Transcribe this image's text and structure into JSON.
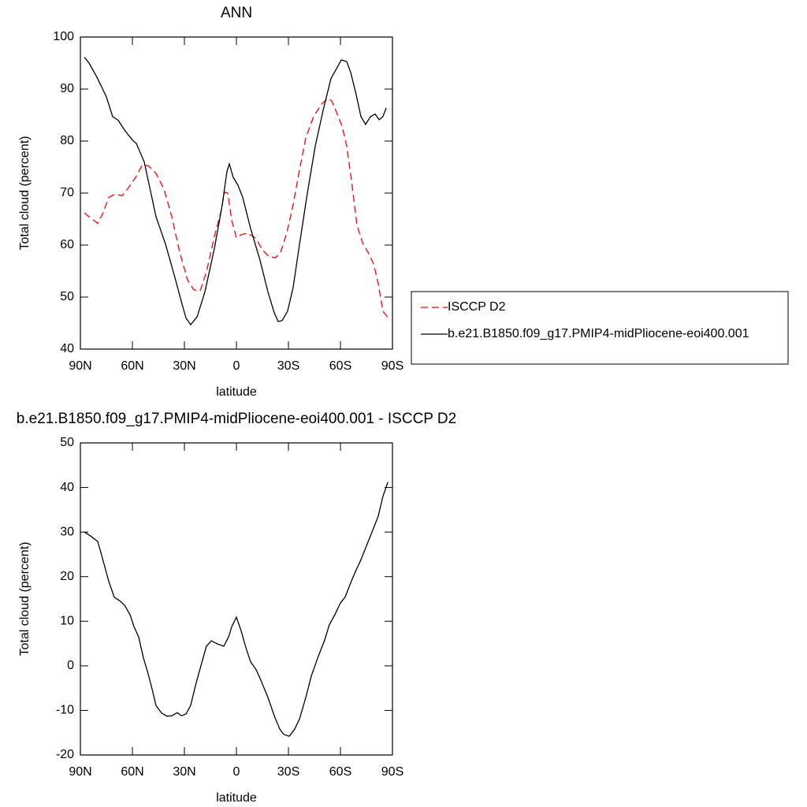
{
  "chart_data": [
    {
      "type": "line",
      "title": "ANN",
      "xlabel": "latitude",
      "ylabel": "Total cloud (percent)",
      "xlim": [
        90,
        -90
      ],
      "xticks": [
        {
          "value": 90,
          "label": "90N"
        },
        {
          "value": 60,
          "label": "60N"
        },
        {
          "value": 30,
          "label": "30N"
        },
        0,
        {
          "value": -30,
          "label": "30S"
        },
        {
          "value": -60,
          "label": "60S"
        },
        {
          "value": -90,
          "label": "90S"
        }
      ],
      "ylim": [
        40,
        100
      ],
      "yticks": [
        40,
        50,
        60,
        70,
        80,
        90,
        100
      ],
      "legend": "right",
      "series": [
        {
          "name": "ISCCP D2",
          "color": "#ff0000",
          "linestyle": "dashed",
          "x": [
            87.7,
            84.1,
            80,
            77.3,
            73.6,
            70,
            65.9,
            62.3,
            58.2,
            54.5,
            50.9,
            46.4,
            41.8,
            37.3,
            32.7,
            28.2,
            24.5,
            20.9,
            17.3,
            12.7,
            9.1,
            6.8,
            5,
            2.7,
            0,
            -2.7,
            -6.4,
            -10.9,
            -15.5,
            -19.1,
            -22.7,
            -25.5,
            -29.1,
            -32.7,
            -36.4,
            -40,
            -44.5,
            -49.1,
            -52.7,
            -55,
            -58.2,
            -60.9,
            -63.6,
            -66.4,
            -69.5,
            -72.7,
            -75.9,
            -79.1,
            -81.8,
            -84.5,
            -87.3
          ],
          "values": [
            66.2,
            65.2,
            64.2,
            65.9,
            69.2,
            69.8,
            69.5,
            71,
            73,
            75.3,
            75.3,
            73.8,
            70.8,
            65.5,
            58.6,
            53.3,
            51.4,
            51.2,
            54.8,
            61.7,
            66.2,
            70.2,
            70,
            64.7,
            61.4,
            62,
            62.3,
            61.4,
            58.9,
            57.7,
            57.6,
            58.6,
            62.4,
            67.7,
            74.5,
            80.6,
            84.7,
            87.1,
            88.2,
            87.7,
            85.2,
            82.9,
            79.1,
            72.3,
            63.9,
            60.5,
            58.6,
            56.4,
            52.6,
            47.3,
            46.1
          ]
        },
        {
          "name": "b.e21.B1850.f09_g17.PMIP4-midPliocene-eoi400.001",
          "color": "#000000",
          "linestyle": "solid",
          "x": [
            87.7,
            85,
            80.5,
            75,
            71.4,
            68.2,
            64.5,
            60,
            57.7,
            53.2,
            46.4,
            40.9,
            35.5,
            31.8,
            29.1,
            26.4,
            22.7,
            18.2,
            12.7,
            8.2,
            5.5,
            4.1,
            1.8,
            -0.9,
            -3.6,
            -8.2,
            -13.6,
            -18.2,
            -21.8,
            -24.1,
            -26.4,
            -29.5,
            -32.7,
            -36.4,
            -40.9,
            -45.5,
            -50,
            -54.5,
            -58.2,
            -60.5,
            -63.6,
            -65.9,
            -69.1,
            -71.8,
            -74.5,
            -77.3,
            -80,
            -82.3,
            -84.5,
            -86.4
          ],
          "values": [
            96.1,
            95,
            92.3,
            88.5,
            84.7,
            84,
            82.1,
            80.2,
            79.5,
            76,
            65.5,
            60.2,
            53.8,
            49.2,
            46,
            44.7,
            46.2,
            51,
            59.4,
            67.7,
            74.1,
            75.6,
            73,
            71.5,
            69.2,
            63.2,
            57.1,
            51,
            47,
            45.3,
            45.5,
            47.3,
            51.8,
            60.2,
            70,
            79.1,
            85.9,
            92,
            94.2,
            95.6,
            95.3,
            93.2,
            88.9,
            84.7,
            83.2,
            84.7,
            85.2,
            84.1,
            84.7,
            86.4
          ]
        }
      ]
    },
    {
      "type": "line",
      "title": "b.e21.B1850.f09_g17.PMIP4-midPliocene-eoi400.001 - ISCCP D2",
      "xlabel": "latitude",
      "ylabel": "Total cloud (percent)",
      "xlim": [
        90,
        -90
      ],
      "xticks": [
        {
          "value": 90,
          "label": "90N"
        },
        {
          "value": 60,
          "label": "60N"
        },
        {
          "value": 30,
          "label": "30N"
        },
        0,
        {
          "value": -30,
          "label": "30S"
        },
        {
          "value": -60,
          "label": "60S"
        },
        {
          "value": -90,
          "label": "90S"
        }
      ],
      "ylim": [
        -20,
        50
      ],
      "yticks": [
        -20,
        -10,
        0,
        10,
        20,
        30,
        40,
        50
      ],
      "series": [
        {
          "color": "#000000",
          "linestyle": "solid",
          "x": [
            87.7,
            84.1,
            80,
            77.3,
            73.6,
            70.5,
            67.3,
            64.5,
            61.4,
            59.1,
            56.4,
            53.6,
            50.9,
            48.6,
            46.4,
            43.2,
            40,
            37.3,
            34.1,
            31.8,
            29.1,
            26.4,
            23.6,
            20.5,
            17.3,
            14.5,
            10.9,
            7.3,
            4.5,
            2.7,
            0,
            -2.7,
            -5.5,
            -8.2,
            -11.4,
            -14.5,
            -18.2,
            -21.8,
            -25,
            -27.3,
            -30.5,
            -33.6,
            -36.4,
            -40,
            -43.2,
            -46.8,
            -50.9,
            -53.6,
            -56.8,
            -60,
            -62.7,
            -66.4,
            -69.1,
            -71.8,
            -75.5,
            -79.1,
            -81.8,
            -84.5,
            -87.3
          ],
          "values": [
            30,
            29.1,
            27.9,
            24.2,
            18.9,
            15.4,
            14.6,
            13.6,
            11.5,
            8.8,
            6.5,
            1.7,
            -1.8,
            -5.3,
            -8.9,
            -10.6,
            -11.3,
            -11.2,
            -10.5,
            -11.2,
            -10.8,
            -8.9,
            -4.4,
            0,
            4.4,
            5.6,
            4.9,
            4.4,
            6.5,
            8.8,
            10.9,
            7.9,
            4,
            0.9,
            -0.9,
            -3.6,
            -7.1,
            -11.2,
            -14.2,
            -15.4,
            -15.8,
            -14.2,
            -11.9,
            -7.1,
            -2.3,
            1.7,
            5.8,
            9.2,
            11.5,
            14.1,
            15.4,
            19.1,
            21.5,
            23.8,
            27.4,
            30.9,
            33.6,
            38,
            41.2
          ]
        }
      ]
    }
  ]
}
